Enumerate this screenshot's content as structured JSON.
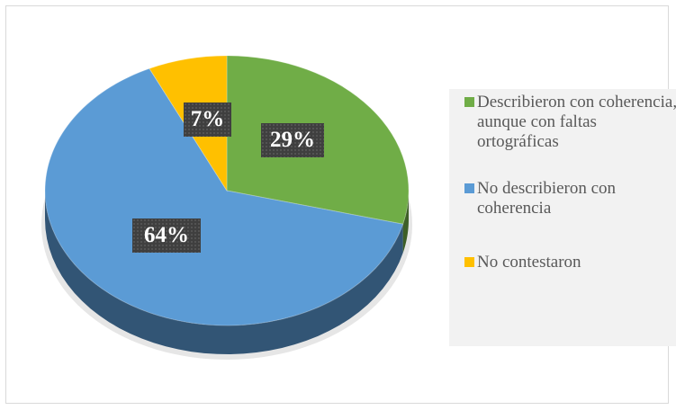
{
  "chart_data": {
    "type": "pie",
    "title": "",
    "categories": [
      "Describieron con coherencia, aunque con faltas ortográficas",
      "No describieron con coherencia",
      "No contestaron"
    ],
    "values": [
      29,
      64,
      7
    ],
    "labels": [
      "29%",
      "64%",
      "7%"
    ],
    "colors": [
      "#70ad47",
      "#5b9bd5",
      "#ffc000"
    ],
    "legend_position": "right",
    "style": "3d"
  },
  "legend": {
    "items": [
      {
        "label": "Describieron con coherencia, aunque con faltas ortográficas",
        "color": "#70ad47"
      },
      {
        "label": "No describieron con coherencia",
        "color": "#5b9bd5"
      },
      {
        "label": "No contestaron",
        "color": "#ffc000"
      }
    ]
  }
}
